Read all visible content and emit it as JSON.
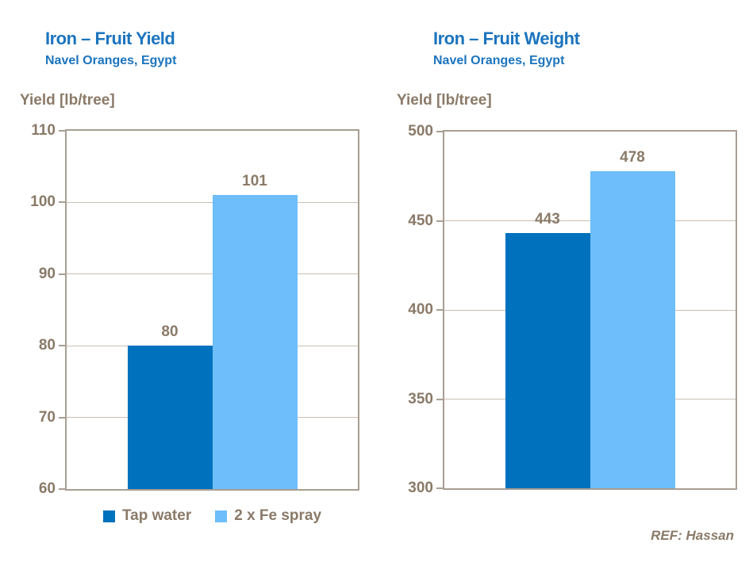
{
  "colors": {
    "title_blue": "#1B74BE",
    "label_brown": "#8A7A68",
    "gridline": "#C9BFB3",
    "plot_border": "#A89E91",
    "bar_dark_blue": "#0071BD",
    "bar_light_blue": "#6DBEFB",
    "background": "#FFFFFF"
  },
  "legend": {
    "items": [
      {
        "label": "Tap water",
        "color": "#0071BD"
      },
      {
        "label": "2 x Fe spray",
        "color": "#6DBEFB"
      }
    ]
  },
  "footer": {
    "ref": "REF: Hassan"
  },
  "chart_data": [
    {
      "type": "bar",
      "title": "Iron – Fruit Yield",
      "subtitle": "Navel Oranges, Egypt",
      "ylabel": "Yield [lb/tree]",
      "ylim": [
        60,
        110
      ],
      "yticks": [
        110,
        100,
        90,
        80,
        70,
        60
      ],
      "grid": "horizontal",
      "legend_position": "bottom",
      "categories": [
        "Tap water",
        "2 x Fe spray"
      ],
      "series": [
        {
          "name": "Tap water",
          "value": 80,
          "color": "#0071BD"
        },
        {
          "name": "2 x Fe spray",
          "value": 101,
          "color": "#6DBEFB"
        }
      ]
    },
    {
      "type": "bar",
      "title": "Iron – Fruit Weight",
      "subtitle": "Navel Oranges, Egypt",
      "ylabel": "Yield [lb/tree]",
      "ylim": [
        300,
        500
      ],
      "yticks": [
        500,
        450,
        400,
        350,
        300
      ],
      "grid": "horizontal",
      "legend_position": "none",
      "categories": [
        "Tap water",
        "2 x Fe spray"
      ],
      "series": [
        {
          "name": "Tap water",
          "value": 443,
          "color": "#0071BD"
        },
        {
          "name": "2 x Fe spray",
          "value": 478,
          "color": "#6DBEFB"
        }
      ]
    }
  ]
}
